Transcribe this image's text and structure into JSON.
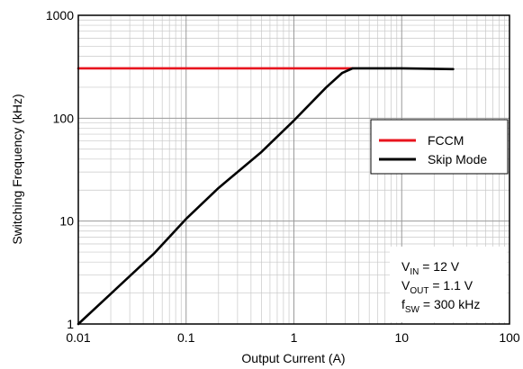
{
  "chart_data": {
    "type": "line",
    "xlabel": "Output Current (A)",
    "ylabel": "Switching Frequency (kHz)",
    "xscale": "log",
    "yscale": "log",
    "xlim": [
      0.01,
      100
    ],
    "ylim": [
      1,
      1000
    ],
    "grid": true,
    "x_ticks": [
      "0.01",
      "0.1",
      "1",
      "10",
      "100"
    ],
    "y_ticks": [
      "1",
      "10",
      "100",
      "1000"
    ],
    "legend_position": "right",
    "series": [
      {
        "name": "FCCM",
        "color": "#e8141e",
        "x": [
          0.01,
          3.5
        ],
        "y": [
          305,
          305
        ]
      },
      {
        "name": "Skip Mode",
        "color": "#000000",
        "x": [
          0.01,
          0.05,
          0.1,
          0.2,
          0.5,
          1,
          2,
          2.8,
          3.5,
          10,
          30
        ],
        "y": [
          1,
          4.8,
          10.5,
          21,
          47,
          95,
          200,
          275,
          305,
          305,
          300
        ]
      }
    ],
    "annotation": {
      "lines": [
        {
          "main": "V",
          "sub": "IN",
          "rest": " = 12 V"
        },
        {
          "main": "V",
          "sub": "OUT",
          "rest": " = 1.1 V"
        },
        {
          "main": "f",
          "sub": "SW",
          "rest": " = 300 kHz"
        }
      ]
    }
  }
}
